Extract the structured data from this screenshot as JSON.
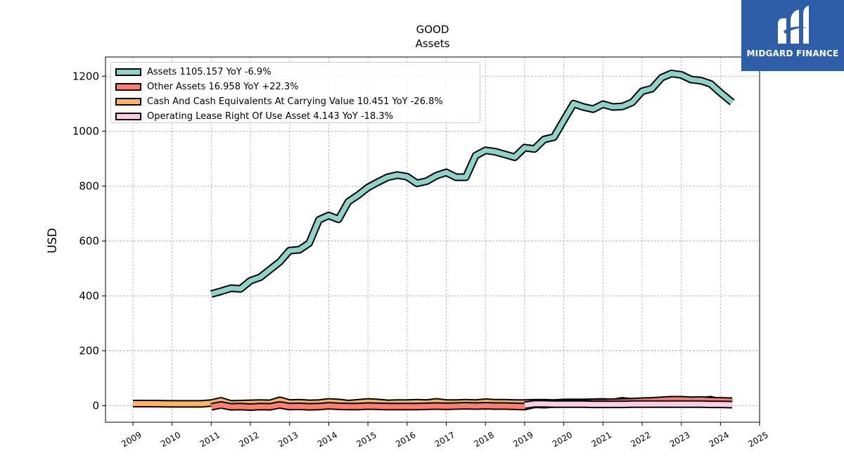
{
  "chart_data": {
    "type": "area",
    "title": "GOOD",
    "subtitle": "Assets",
    "ylabel": "USD",
    "xlabel": "",
    "xlim": [
      2008.3,
      2025.0
    ],
    "ylim": [
      -60,
      1270
    ],
    "xticks": [
      "2009",
      "2010",
      "2011",
      "2012",
      "2013",
      "2014",
      "2015",
      "2016",
      "2017",
      "2018",
      "2019",
      "2020",
      "2021",
      "2022",
      "2023",
      "2024",
      "2025"
    ],
    "yticks": [
      "0",
      "200",
      "400",
      "600",
      "800",
      "1000",
      "1200"
    ],
    "grid": true,
    "legend_position": "top-left",
    "series": [
      {
        "name": "Assets",
        "legend_label": "Assets  1105.157 YoY -6.9%",
        "color": "#8dd3c7",
        "x": [
          2011.0,
          2011.25,
          2011.5,
          2011.75,
          2012.0,
          2012.25,
          2012.5,
          2012.75,
          2013.0,
          2013.25,
          2013.5,
          2013.75,
          2014.0,
          2014.25,
          2014.5,
          2014.75,
          2015.0,
          2015.25,
          2015.5,
          2015.75,
          2016.0,
          2016.25,
          2016.5,
          2016.75,
          2017.0,
          2017.25,
          2017.5,
          2017.75,
          2018.0,
          2018.25,
          2018.5,
          2018.75,
          2019.0,
          2019.25,
          2019.5,
          2019.75,
          2020.0,
          2020.25,
          2020.5,
          2020.75,
          2021.0,
          2021.25,
          2021.5,
          2021.75,
          2022.0,
          2022.25,
          2022.5,
          2022.75,
          2023.0,
          2023.25,
          2023.5,
          2023.75,
          2024.0,
          2024.3
        ],
        "values": [
          407,
          417,
          428,
          426,
          455,
          468,
          496,
          524,
          565,
          568,
          592,
          677,
          693,
          679,
          743,
          767,
          795,
          814,
          832,
          840,
          834,
          810,
          818,
          838,
          850,
          832,
          832,
          911,
          930,
          925,
          915,
          905,
          940,
          935,
          970,
          978,
          1040,
          1100,
          1088,
          1080,
          1098,
          1088,
          1090,
          1105,
          1145,
          1155,
          1195,
          1210,
          1205,
          1188,
          1184,
          1172,
          1140,
          1105
        ]
      },
      {
        "name": "Other Assets",
        "legend_label": "Other Assets  16.958 YoY +22.3%",
        "color": "#fb8072",
        "x": [
          2011.0,
          2011.25,
          2011.5,
          2011.75,
          2012.0,
          2012.25,
          2012.5,
          2012.75,
          2013.0,
          2013.25,
          2013.5,
          2013.75,
          2014.0,
          2014.25,
          2014.5,
          2014.75,
          2015.0,
          2015.25,
          2015.5,
          2015.75,
          2016.0,
          2016.25,
          2016.5,
          2016.75,
          2017.0,
          2017.25,
          2017.5,
          2017.75,
          2018.0,
          2018.25,
          2018.5,
          2018.75,
          2019.0,
          2019.25,
          2019.5,
          2019.75,
          2020.0,
          2020.25,
          2020.5,
          2020.75,
          2021.0,
          2021.25,
          2021.5,
          2021.75,
          2022.0,
          2022.25,
          2022.5,
          2022.75,
          2023.0,
          2023.25,
          2023.5,
          2023.75,
          2024.0,
          2024.3
        ],
        "values": [
          -4,
          3,
          -4,
          -3,
          -5,
          -3,
          -4,
          3,
          -3,
          -2,
          -4,
          -3,
          0,
          -2,
          -3,
          -3,
          -1,
          -2,
          -3,
          -3,
          -3,
          -3,
          -2,
          -1,
          -2,
          -1,
          0,
          -1,
          0,
          -1,
          -1,
          -2,
          -3,
          5,
          4,
          6,
          8,
          10,
          10,
          12,
          12,
          13,
          14,
          15,
          17,
          18,
          20,
          22,
          22,
          20,
          21,
          19,
          18,
          17
        ]
      },
      {
        "name": "Cash And Cash Equivalents At Carrying Value",
        "legend_label": "Cash And Cash Equivalents At Carrying Value  10.451 YoY -26.8%",
        "color": "#fdb462",
        "x": [
          2009.0,
          2009.5,
          2010.0,
          2010.5,
          2010.75,
          2011.0,
          2011.25,
          2011.5,
          2011.75,
          2012.0,
          2012.25,
          2012.5,
          2012.75,
          2013.0,
          2013.25,
          2013.5,
          2013.75,
          2014.0,
          2014.25,
          2014.5,
          2014.75,
          2015.0,
          2015.25,
          2015.5,
          2015.75,
          2016.0,
          2016.25,
          2016.5,
          2016.75,
          2017.0,
          2017.25,
          2017.5,
          2017.75,
          2018.0,
          2018.25,
          2018.5,
          2018.75,
          2019.0,
          2019.25,
          2019.5,
          2019.75,
          2020.0,
          2020.25,
          2020.5,
          2020.75,
          2021.0,
          2021.25,
          2021.5,
          2021.75,
          2022.0,
          2022.25,
          2022.5,
          2022.75,
          2023.0,
          2023.25,
          2023.5,
          2023.75,
          2024.0,
          2024.3
        ],
        "values": [
          8,
          8,
          7,
          7,
          7,
          10,
          18,
          7,
          8,
          9,
          10,
          9,
          20,
          10,
          11,
          9,
          10,
          14,
          12,
          8,
          11,
          14,
          12,
          9,
          10,
          10,
          11,
          10,
          14,
          10,
          10,
          11,
          10,
          13,
          11,
          11,
          10,
          10,
          11,
          11,
          10,
          12,
          12,
          12,
          13,
          14,
          12,
          18,
          14,
          12,
          13,
          15,
          20,
          18,
          14,
          18,
          22,
          13,
          10
        ]
      },
      {
        "name": "Operating Lease Right Of Use Asset",
        "legend_label": "Operating Lease Right Of Use Asset  4.143 YoY -18.3%",
        "color": "#fccde5",
        "x": [
          2019.0,
          2019.25,
          2019.5,
          2019.75,
          2020.0,
          2020.25,
          2020.5,
          2020.75,
          2021.0,
          2021.25,
          2021.5,
          2021.75,
          2022.0,
          2022.25,
          2022.5,
          2022.75,
          2023.0,
          2023.25,
          2023.5,
          2023.75,
          2024.0,
          2024.3
        ],
        "values": [
          2,
          7,
          7,
          6,
          6,
          6,
          6,
          5,
          5,
          5,
          5,
          6,
          6,
          6,
          6,
          6,
          6,
          6,
          6,
          5,
          5,
          4
        ]
      }
    ]
  },
  "logo": {
    "text": "MIDGARD FINANCE",
    "color": "#2f5ea9"
  }
}
